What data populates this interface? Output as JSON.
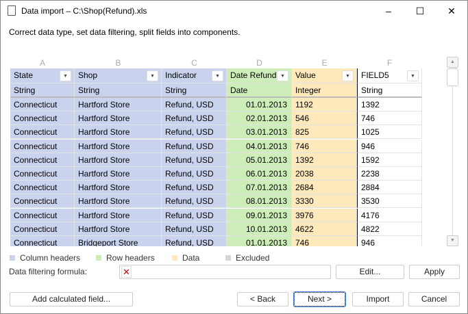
{
  "window": {
    "title": "Data import – C:\\Shop(Refund).xls",
    "minimize": "–",
    "maximize": "☐",
    "close": "✕"
  },
  "subtitle": "Correct data type, set data filtering, split fields into components.",
  "columns": [
    {
      "letter": "A",
      "header": "State",
      "type": "String",
      "color": "#c9d3ee"
    },
    {
      "letter": "B",
      "header": "Shop",
      "type": "String",
      "color": "#c9d3ee"
    },
    {
      "letter": "C",
      "header": "Indicator",
      "type": "String",
      "color": "#c9d3ee"
    },
    {
      "letter": "D",
      "header": "Date Refund",
      "type": "Date",
      "color": "#cdeeb9"
    },
    {
      "letter": "E",
      "header": "Value",
      "type": "Integer",
      "color": "#fde9bb"
    },
    {
      "letter": "F",
      "header": "FIELD5",
      "type": "String",
      "color": "#ffffff"
    }
  ],
  "rows": [
    [
      "Connecticut",
      "Hartford Store",
      "Refund, USD",
      "01.01.2013",
      "1192",
      "1392"
    ],
    [
      "Connecticut",
      "Hartford Store",
      "Refund, USD",
      "02.01.2013",
      "546",
      "746"
    ],
    [
      "Connecticut",
      "Hartford Store",
      "Refund, USD",
      "03.01.2013",
      "825",
      "1025"
    ],
    [
      "Connecticut",
      "Hartford Store",
      "Refund, USD",
      "04.01.2013",
      "746",
      "946"
    ],
    [
      "Connecticut",
      "Hartford Store",
      "Refund, USD",
      "05.01.2013",
      "1392",
      "1592"
    ],
    [
      "Connecticut",
      "Hartford Store",
      "Refund, USD",
      "06.01.2013",
      "2038",
      "2238"
    ],
    [
      "Connecticut",
      "Hartford Store",
      "Refund, USD",
      "07.01.2013",
      "2684",
      "2884"
    ],
    [
      "Connecticut",
      "Hartford Store",
      "Refund, USD",
      "08.01.2013",
      "3330",
      "3530"
    ],
    [
      "Connecticut",
      "Hartford Store",
      "Refund, USD",
      "09.01.2013",
      "3976",
      "4176"
    ],
    [
      "Connecticut",
      "Hartford Store",
      "Refund, USD",
      "10.01.2013",
      "4622",
      "4822"
    ],
    [
      "Connecticut",
      "Bridgeport Store",
      "Refund, USD",
      "01.01.2013",
      "746",
      "946"
    ]
  ],
  "legend": [
    {
      "label": "Column headers",
      "color": "#c9d3ee"
    },
    {
      "label": "Row headers",
      "color": "#cdeeb9"
    },
    {
      "label": "Data",
      "color": "#fde9bb"
    },
    {
      "label": "Excluded",
      "color": "#d6d6d6"
    }
  ],
  "filter": {
    "label": "Data filtering formula:",
    "value": "",
    "edit": "Edit...",
    "apply": "Apply"
  },
  "buttons": {
    "add_field": "Add calculated field...",
    "back": "< Back",
    "next": "Next >",
    "import": "Import",
    "cancel": "Cancel"
  }
}
